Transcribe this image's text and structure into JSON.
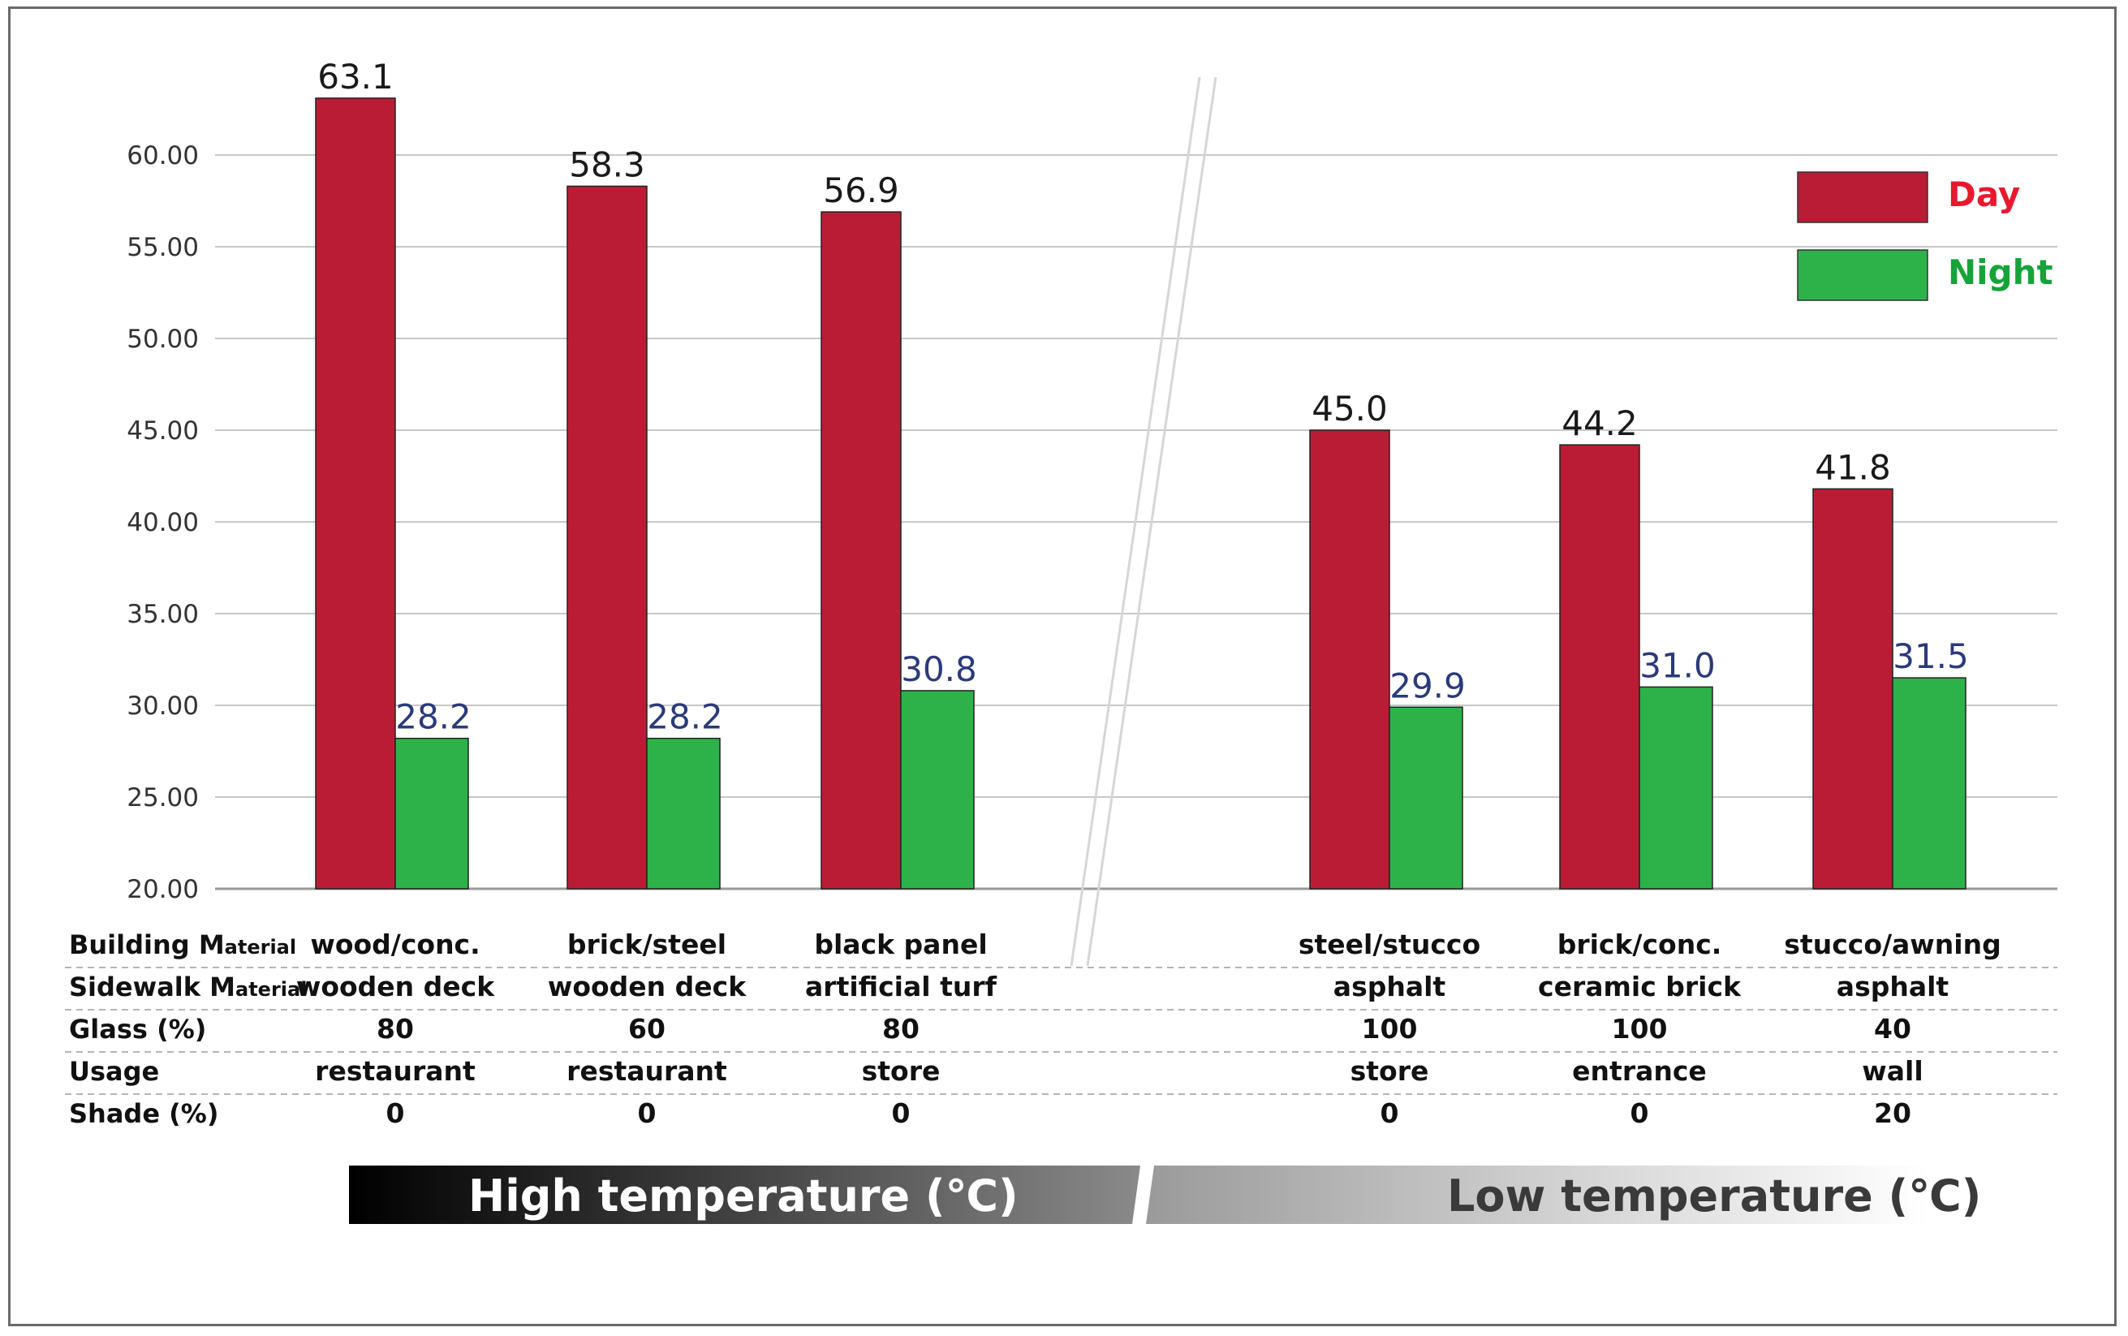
{
  "chart_data": {
    "type": "bar",
    "title": "",
    "xlabel": "",
    "ylabel": "",
    "ylim": [
      20,
      65
    ],
    "yticks": [
      "20.00",
      "25.00",
      "30.00",
      "35.00",
      "40.00",
      "45.00",
      "50.00",
      "55.00",
      "60.00"
    ],
    "categories": [
      "wood/conc.",
      "brick/steel",
      "black panel",
      "steel/stucco",
      "brick/conc.",
      "stucco/awning"
    ],
    "series": [
      {
        "name": "Day",
        "color": "#bb1c35",
        "values": [
          63.1,
          58.3,
          56.9,
          45.0,
          44.2,
          41.8
        ],
        "labels": [
          "63.1",
          "58.3",
          "56.9",
          "45.0",
          "44.2",
          "41.8"
        ]
      },
      {
        "name": "Night",
        "color": "#2db24a",
        "values": [
          28.2,
          28.2,
          30.8,
          29.9,
          31.0,
          31.5
        ],
        "labels": [
          "28.2",
          "28.2",
          "30.8",
          "29.9",
          "31.0",
          "31.5"
        ]
      }
    ],
    "legend": {
      "position": "top-right",
      "items": [
        {
          "label": "Day",
          "color": "#bb1c35",
          "text_color": "#e8192f"
        },
        {
          "label": "Night",
          "color": "#2db24a",
          "text_color": "#16a33a"
        }
      ]
    },
    "table": {
      "rows": [
        {
          "head_main": "Building M",
          "head_small": "aterial",
          "cells": [
            "wood/conc.",
            "brick/steel",
            "black panel",
            "steel/stucco",
            "brick/conc.",
            "stucco/awning"
          ]
        },
        {
          "head_main": "Sidewalk M",
          "head_small": "aterial",
          "cells": [
            "wooden deck",
            "wooden deck",
            "artificial turf",
            "asphalt",
            "ceramic brick",
            "asphalt"
          ]
        },
        {
          "head_main": "Glass (%)",
          "head_small": "",
          "cells": [
            "80",
            "60",
            "80",
            "100",
            "100",
            "40"
          ]
        },
        {
          "head_main": "Usage",
          "head_small": "",
          "cells": [
            "restaurant",
            "restaurant",
            "store",
            "store",
            "entrance",
            "wall"
          ]
        },
        {
          "head_main": "Shade (%)",
          "head_small": "",
          "cells": [
            "0",
            "0",
            "0",
            "0",
            "0",
            "20"
          ]
        }
      ]
    },
    "groups": [
      {
        "label": "High temperature (℃)"
      },
      {
        "label": "Low temperature (℃)"
      }
    ],
    "value_label_colors": {
      "day": "#1a1a1a",
      "night": "#2b3a7a"
    }
  }
}
